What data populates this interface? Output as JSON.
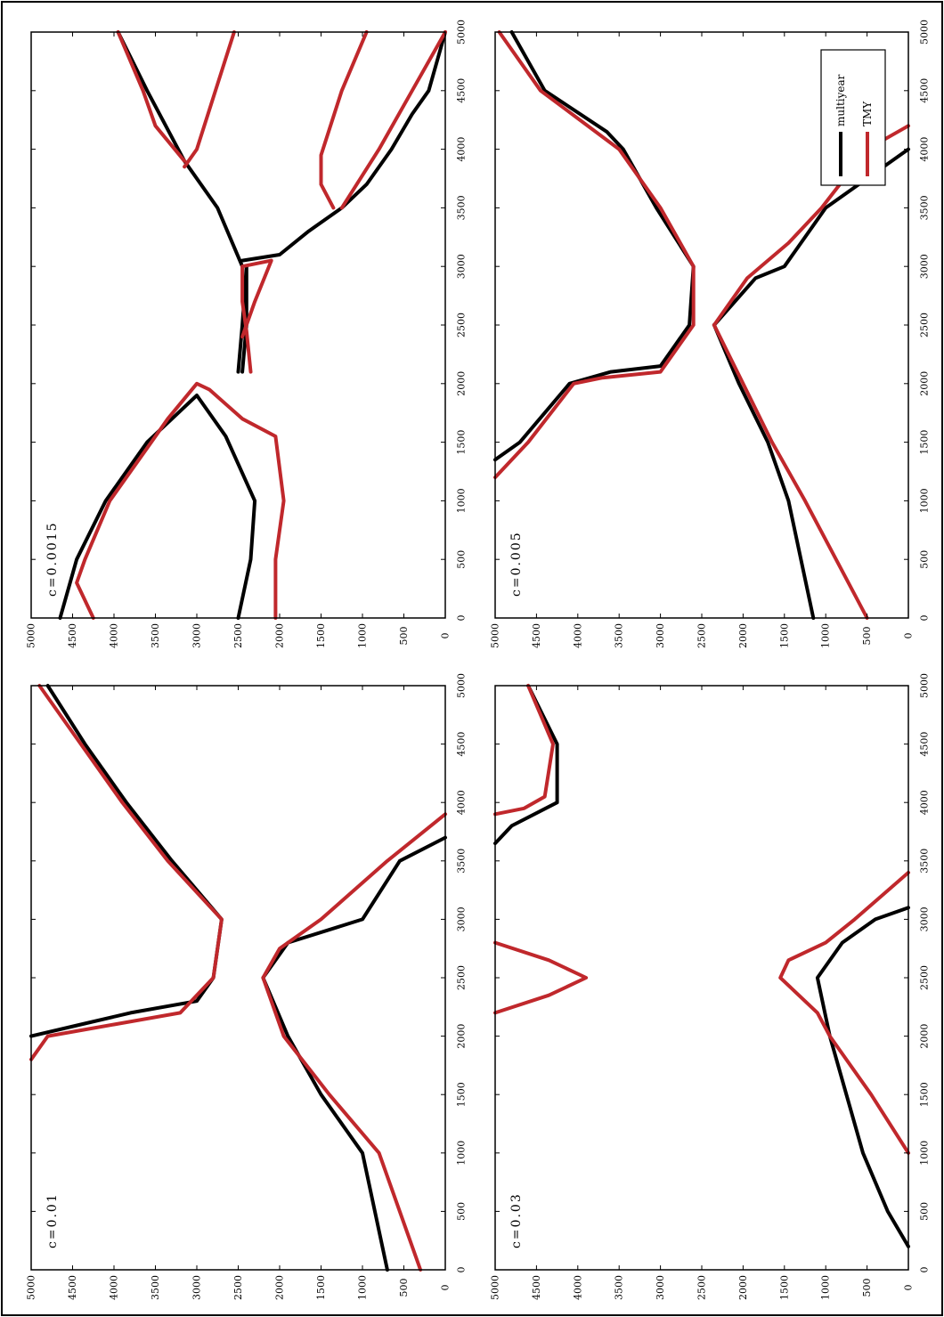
{
  "figure": {
    "orientation": "rotated 90 degrees counter-clockwise",
    "colors": {
      "multiyear": "#000000",
      "TMY": "#c0282c",
      "frame": "#000000",
      "background": "#ffffff"
    }
  },
  "chart_data": [
    {
      "type": "line",
      "label": "c=0.005",
      "xlim": [
        0,
        5000
      ],
      "ylim": [
        0,
        5000
      ],
      "x_ticks": [
        "0",
        "500",
        "1000",
        "1500",
        "2000",
        "2500",
        "3000",
        "3500",
        "4000",
        "4500",
        "5000"
      ],
      "y_ticks": [
        "0",
        "500",
        "1000",
        "1500",
        "2000",
        "2500",
        "3000",
        "3500",
        "4000",
        "4500",
        "5000"
      ],
      "grid": false,
      "series": [
        {
          "name": "multiyear",
          "color": "#000000",
          "segments": [
            [
              [
                1350,
                5000
              ],
              [
                1500,
                4700
              ],
              [
                2000,
                4100
              ],
              [
                2100,
                3600
              ],
              [
                2150,
                3000
              ],
              [
                2500,
                2650
              ],
              [
                3000,
                2600
              ],
              [
                3500,
                3050
              ],
              [
                4000,
                3450
              ],
              [
                4150,
                3650
              ],
              [
                4500,
                4400
              ],
              [
                5000,
                4800
              ]
            ],
            [
              [
                0,
                1150
              ],
              [
                1000,
                1450
              ],
              [
                1500,
                1700
              ],
              [
                2000,
                2050
              ],
              [
                2500,
                2350
              ]
            ],
            [
              [
                2500,
                2350
              ],
              [
                2900,
                1850
              ],
              [
                3000,
                1500
              ],
              [
                3500,
                1000
              ],
              [
                4000,
                0
              ]
            ]
          ]
        },
        {
          "name": "TMY",
          "color": "#c0282c",
          "segments": [
            [
              [
                1200,
                5000
              ],
              [
                1500,
                4600
              ],
              [
                2000,
                4050
              ],
              [
                2050,
                3700
              ],
              [
                2100,
                3000
              ],
              [
                2500,
                2600
              ],
              [
                3000,
                2600
              ],
              [
                3500,
                3000
              ],
              [
                4000,
                3500
              ],
              [
                4500,
                4450
              ],
              [
                5000,
                4950
              ]
            ],
            [
              [
                0,
                500
              ],
              [
                1000,
                1250
              ],
              [
                1500,
                1650
              ],
              [
                2000,
                2000
              ],
              [
                2500,
                2350
              ]
            ],
            [
              [
                2500,
                2350
              ],
              [
                2900,
                1950
              ],
              [
                3200,
                1450
              ],
              [
                3500,
                1050
              ],
              [
                4000,
                500
              ],
              [
                4200,
                0
              ]
            ]
          ]
        }
      ]
    },
    {
      "type": "line",
      "label": "c=0.0015",
      "xlim": [
        0,
        5000
      ],
      "ylim": [
        0,
        5000
      ],
      "x_ticks": [
        "0",
        "500",
        "1000",
        "1500",
        "2000",
        "2500",
        "3000",
        "3500",
        "4000",
        "4500",
        "5000"
      ],
      "y_ticks": [
        "0",
        "500",
        "1000",
        "1500",
        "2000",
        "2500",
        "3000",
        "3500",
        "4000",
        "4500",
        "5000"
      ],
      "grid": false,
      "series": [
        {
          "name": "multiyear",
          "color": "#000000",
          "segments": [
            [
              [
                0,
                4650
              ],
              [
                500,
                4450
              ],
              [
                1000,
                4100
              ],
              [
                1500,
                3600
              ],
              [
                1700,
                3300
              ],
              [
                1900,
                3000
              ],
              [
                1550,
                2650
              ],
              [
                1000,
                2300
              ],
              [
                500,
                2350
              ],
              [
                0,
                2500
              ]
            ],
            [
              [
                2100,
                2450
              ],
              [
                2500,
                2400
              ],
              [
                3000,
                2400
              ],
              [
                2500,
                2450
              ],
              [
                2100,
                2500
              ]
            ],
            [
              [
                3000,
                2450
              ],
              [
                3500,
                2750
              ],
              [
                3900,
                3150
              ],
              [
                4500,
                3600
              ],
              [
                5000,
                3950
              ]
            ],
            [
              [
                3050,
                2450
              ],
              [
                3100,
                2000
              ],
              [
                3300,
                1650
              ],
              [
                3500,
                1250
              ],
              [
                3700,
                950
              ],
              [
                4000,
                650
              ],
              [
                4300,
                400
              ],
              [
                4500,
                200
              ],
              [
                5000,
                0
              ]
            ]
          ]
        },
        {
          "name": "TMY",
          "color": "#c0282c",
          "segments": [
            [
              [
                0,
                4250
              ],
              [
                300,
                4450
              ],
              [
                500,
                4350
              ],
              [
                1000,
                4050
              ],
              [
                1500,
                3550
              ],
              [
                1700,
                3350
              ],
              [
                2000,
                3000
              ],
              [
                1950,
                2850
              ],
              [
                1700,
                2450
              ],
              [
                1550,
                2050
              ],
              [
                1000,
                1950
              ],
              [
                500,
                2050
              ],
              [
                0,
                2050
              ]
            ],
            [
              [
                2100,
                2350
              ],
              [
                2450,
                2400
              ],
              [
                2700,
                2450
              ],
              [
                3000,
                2450
              ],
              [
                3050,
                2100
              ],
              [
                2700,
                2300
              ],
              [
                2400,
                2450
              ]
            ],
            [
              [
                3850,
                3150
              ],
              [
                4000,
                3000
              ],
              [
                5000,
                2550
              ]
            ],
            [
              [
                3900,
                3150
              ],
              [
                4200,
                3500
              ],
              [
                4500,
                3650
              ],
              [
                5000,
                3950
              ]
            ],
            [
              [
                3500,
                1350
              ],
              [
                3700,
                1500
              ],
              [
                3950,
                1500
              ],
              [
                4500,
                1250
              ],
              [
                5000,
                950
              ]
            ],
            [
              [
                3500,
                1250
              ],
              [
                4000,
                800
              ],
              [
                4500,
                400
              ],
              [
                5000,
                0
              ]
            ]
          ]
        }
      ]
    },
    {
      "type": "line",
      "label": "c=0.03",
      "xlim": [
        0,
        5000
      ],
      "ylim": [
        0,
        5000
      ],
      "x_ticks": [
        "0",
        "500",
        "1000",
        "1500",
        "2000",
        "2500",
        "3000",
        "3500",
        "4000",
        "4500",
        "5000"
      ],
      "y_ticks": [
        "0",
        "500",
        "1000",
        "1500",
        "2000",
        "2500",
        "3000",
        "3500",
        "4000",
        "4500",
        "5000"
      ],
      "grid": false,
      "legend_position": "bottom-right",
      "series": [
        {
          "name": "multiyear",
          "color": "#000000",
          "segments": [
            [
              [
                3650,
                5000
              ],
              [
                3800,
                4800
              ],
              [
                4000,
                4250
              ],
              [
                4500,
                4250
              ],
              [
                5000,
                4600
              ]
            ],
            [
              [
                200,
                0
              ],
              [
                500,
                250
              ],
              [
                1000,
                550
              ],
              [
                1500,
                750
              ],
              [
                2000,
                950
              ],
              [
                2500,
                1100
              ],
              [
                2800,
                800
              ],
              [
                3000,
                400
              ],
              [
                3100,
                0
              ]
            ]
          ]
        },
        {
          "name": "TMY",
          "color": "#c0282c",
          "segments": [
            [
              [
                2200,
                5000
              ],
              [
                2350,
                4350
              ],
              [
                2500,
                3900
              ],
              [
                2650,
                4350
              ],
              [
                2800,
                5000
              ]
            ],
            [
              [
                3900,
                5000
              ],
              [
                3950,
                4650
              ],
              [
                4050,
                4400
              ],
              [
                4500,
                4300
              ],
              [
                5000,
                4600
              ]
            ],
            [
              [
                1000,
                0
              ],
              [
                1500,
                450
              ],
              [
                2000,
                950
              ],
              [
                2200,
                1100
              ],
              [
                2500,
                1550
              ],
              [
                2650,
                1450
              ],
              [
                2800,
                1000
              ],
              [
                3000,
                650
              ],
              [
                3400,
                0
              ]
            ]
          ]
        }
      ]
    },
    {
      "type": "line",
      "label": "c=0.01",
      "xlim": [
        0,
        5000
      ],
      "ylim": [
        0,
        5000
      ],
      "x_ticks": [
        "0",
        "500",
        "1000",
        "1500",
        "2000",
        "2500",
        "3000",
        "3500",
        "4000",
        "4500",
        "5000"
      ],
      "y_ticks": [
        "0",
        "500",
        "1000",
        "1500",
        "2000",
        "2500",
        "3000",
        "3500",
        "4000",
        "4500",
        "5000"
      ],
      "grid": false,
      "series": [
        {
          "name": "multiyear",
          "color": "#000000",
          "segments": [
            [
              [
                2000,
                5000
              ],
              [
                2100,
                4400
              ],
              [
                2200,
                3800
              ],
              [
                2300,
                3000
              ],
              [
                2500,
                2800
              ],
              [
                3000,
                2700
              ],
              [
                3500,
                3300
              ],
              [
                4000,
                3850
              ],
              [
                4500,
                4350
              ],
              [
                5000,
                4800
              ]
            ],
            [
              [
                0,
                700
              ],
              [
                1000,
                1000
              ],
              [
                1500,
                1500
              ],
              [
                2000,
                1900
              ],
              [
                2500,
                2200
              ],
              [
                2800,
                1900
              ],
              [
                3000,
                1000
              ],
              [
                3500,
                550
              ],
              [
                3700,
                0
              ]
            ]
          ]
        },
        {
          "name": "TMY",
          "color": "#c0282c",
          "segments": [
            [
              [
                1800,
                5000
              ],
              [
                2000,
                4800
              ],
              [
                2100,
                4000
              ],
              [
                2200,
                3200
              ],
              [
                2500,
                2800
              ],
              [
                3000,
                2700
              ],
              [
                3500,
                3350
              ],
              [
                4000,
                3900
              ],
              [
                4500,
                4400
              ],
              [
                5000,
                4900
              ]
            ],
            [
              [
                0,
                300
              ],
              [
                1000,
                800
              ],
              [
                1500,
                1400
              ],
              [
                2000,
                1950
              ],
              [
                2500,
                2200
              ],
              [
                2750,
                2000
              ],
              [
                3000,
                1500
              ],
              [
                3500,
                700
              ],
              [
                3900,
                0
              ]
            ]
          ]
        }
      ]
    }
  ]
}
